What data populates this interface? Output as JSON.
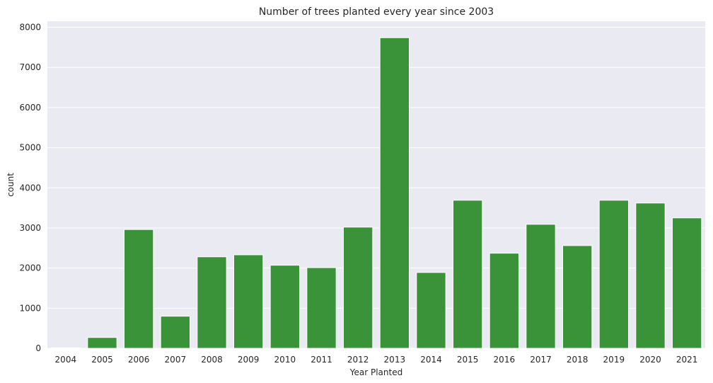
{
  "chart_data": {
    "type": "bar",
    "title": "Number of trees planted every year since 2003",
    "xlabel": "Year Planted",
    "ylabel": "count",
    "categories": [
      "2004",
      "2005",
      "2006",
      "2007",
      "2008",
      "2009",
      "2010",
      "2011",
      "2012",
      "2013",
      "2014",
      "2015",
      "2016",
      "2017",
      "2018",
      "2019",
      "2020",
      "2021"
    ],
    "values": [
      10,
      270,
      2960,
      800,
      2280,
      2330,
      2070,
      2010,
      3020,
      7740,
      1890,
      3690,
      2370,
      3090,
      2560,
      3690,
      3620,
      3250
    ],
    "ylim": [
      0,
      8150
    ],
    "yticks": [
      "0",
      "1000",
      "2000",
      "3000",
      "4000",
      "5000",
      "6000",
      "7000",
      "8000"
    ],
    "grid": true,
    "colors": {
      "bar": "#3a9239",
      "plot_bg": "#eaeaf2",
      "grid": "#ffffff",
      "text": "#262626"
    }
  }
}
